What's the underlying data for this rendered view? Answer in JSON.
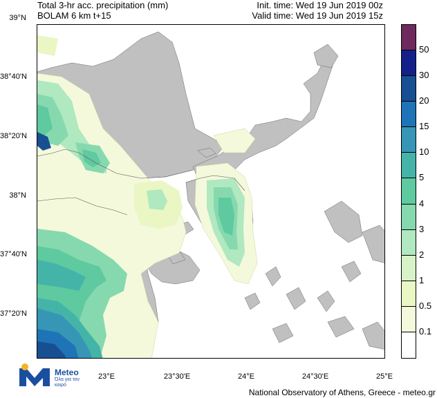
{
  "header": {
    "title_line1": "Total 3-hr acc. precipitation (mm)",
    "title_line2": "BOLAM 6 km t+15",
    "init_time": "Init. time: Wed 19 Jun 2019 00z",
    "valid_time": "Valid time: Wed 19 Jun 2019 15z"
  },
  "map": {
    "lat_labels": [
      "39°N",
      "38°40'N",
      "38°20'N",
      "38°N",
      "37°40'N",
      "37°20'N"
    ],
    "lon_labels": [
      "23°E",
      "23°30'E",
      "24°E",
      "24°30'E",
      "25°E"
    ],
    "land_color": "#c0c0c0",
    "sea_color": "#ffffff"
  },
  "colorbar": {
    "labels": [
      "50",
      "30",
      "20",
      "15",
      "10",
      "5",
      "4",
      "3",
      "2",
      "1",
      "0.5",
      "0.1"
    ],
    "colors": [
      "#6e2a5c",
      "#14208a",
      "#184f93",
      "#1e74b6",
      "#3796b6",
      "#45b4a8",
      "#5fc9a0",
      "#86d9ae",
      "#b0e8c0",
      "#d8f2c8",
      "#eaf6c4",
      "#f4f9dc",
      "#ffffff"
    ]
  },
  "logo": {
    "name": "Meteo",
    "tagline": "Όλα για τον καιρό"
  },
  "footer": {
    "credit": "National Observatory of Athens, Greece - meteo.gr"
  }
}
